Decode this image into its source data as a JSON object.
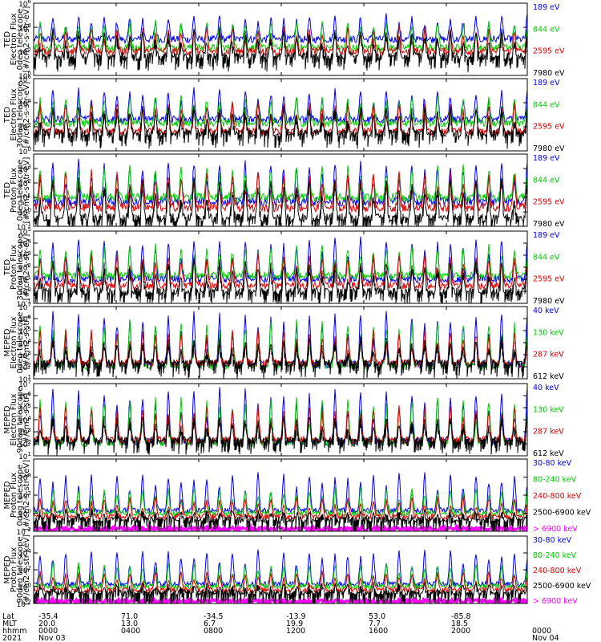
{
  "chart_data": [
    {
      "type": "line",
      "ylabel": [
        "TED",
        "Electron Flux",
        "0deg telescope",
        "[#/cm2-s-str-eV]"
      ],
      "yscale": "log",
      "ylim": [
        1,
        1000000
      ],
      "ytick_labels": [
        {
          "base": "10",
          "exp": "0"
        },
        {
          "base": "10",
          "exp": "2"
        },
        {
          "base": "10",
          "exp": "4"
        },
        {
          "base": "10",
          "exp": "6"
        }
      ],
      "series": [
        {
          "name": "7980 eV",
          "color": "#000000",
          "base": 40,
          "peak": 5000
        },
        {
          "name": "2595 eV",
          "color": "#dd0000",
          "base": 100,
          "peak": 8000
        },
        {
          "name": "844 eV",
          "color": "#00cc00",
          "base": 200,
          "peak": 30000
        },
        {
          "name": "189 eV",
          "color": "#0000ee",
          "base": 1000,
          "peak": 80000
        }
      ]
    },
    {
      "type": "line",
      "ylabel": [
        "TED",
        "Electron Flux",
        "30deg telescope",
        "[#/cm2-s-str-eV]"
      ],
      "yscale": "log",
      "ylim": [
        1,
        1000000
      ],
      "ytick_labels": [
        {
          "base": "10",
          "exp": "0"
        },
        {
          "base": "10",
          "exp": "2"
        },
        {
          "base": "10",
          "exp": "4"
        },
        {
          "base": "10",
          "exp": "6"
        }
      ],
      "series": [
        {
          "name": "7980 eV",
          "color": "#000000",
          "base": 30,
          "peak": 5000
        },
        {
          "name": "2595 eV",
          "color": "#dd0000",
          "base": 40,
          "peak": 8000
        },
        {
          "name": "844 eV",
          "color": "#00cc00",
          "base": 200,
          "peak": 30000
        },
        {
          "name": "189 eV",
          "color": "#0000ee",
          "base": 400,
          "peak": 100000
        }
      ]
    },
    {
      "type": "line",
      "ylabel": [
        "TED",
        "Proton Flux",
        "0deg telescope",
        "[#/cm2-s-str-eV]"
      ],
      "yscale": "log",
      "ylim": [
        0.1,
        10000
      ],
      "ytick_labels": [
        {
          "base": "10",
          "exp": "-1"
        },
        {
          "base": "10",
          "exp": "0"
        },
        {
          "base": "10",
          "exp": "1"
        },
        {
          "base": "10",
          "exp": "2"
        },
        {
          "base": "10",
          "exp": "3"
        }
      ],
      "series": [
        {
          "name": "7980 eV",
          "color": "#000000",
          "base": 0.4,
          "peak": 200
        },
        {
          "name": "2595 eV",
          "color": "#dd0000",
          "base": 2,
          "peak": 500
        },
        {
          "name": "844 eV",
          "color": "#00cc00",
          "base": 10,
          "peak": 1000
        },
        {
          "name": "189 eV",
          "color": "#0000ee",
          "base": 5,
          "peak": 3000
        }
      ]
    },
    {
      "type": "line",
      "ylabel": [
        "TED",
        "Proton Flux",
        "30deg telescope",
        "[#/cm2-s-str-eV]"
      ],
      "yscale": "log",
      "ylim": [
        0.1,
        100000
      ],
      "ytick_labels": [
        {
          "base": "10",
          "exp": "-1"
        },
        {
          "base": "10",
          "exp": "0"
        },
        {
          "base": "10",
          "exp": "1"
        },
        {
          "base": "10",
          "exp": "2"
        },
        {
          "base": "10",
          "exp": "3"
        },
        {
          "base": "10",
          "exp": "4"
        },
        {
          "base": "10",
          "exp": "5"
        }
      ],
      "series": [
        {
          "name": "7980 eV",
          "color": "#000000",
          "base": 1,
          "peak": 300
        },
        {
          "name": "2595 eV",
          "color": "#dd0000",
          "base": 3,
          "peak": 1000
        },
        {
          "name": "844 eV",
          "color": "#00cc00",
          "base": 20,
          "peak": 5000
        },
        {
          "name": "189 eV",
          "color": "#0000ee",
          "base": 10,
          "peak": 20000
        }
      ]
    },
    {
      "type": "line",
      "ylabel": [
        "MEPED",
        "Electron Flux",
        "0deg telescope",
        "[#/cm2-s-str]"
      ],
      "yscale": "log",
      "ylim": [
        10,
        10000000
      ],
      "ytick_labels": [
        {
          "base": "10",
          "exp": "1"
        },
        {
          "base": "10",
          "exp": "2"
        },
        {
          "base": "10",
          "exp": "3"
        },
        {
          "base": "10",
          "exp": "4"
        },
        {
          "base": "10",
          "exp": "5"
        },
        {
          "base": "10",
          "exp": "6"
        },
        {
          "base": "10",
          "exp": "7"
        }
      ],
      "series": [
        {
          "name": "612 keV",
          "color": "#000000",
          "base": 200,
          "peak": 20000
        },
        {
          "name": "287 keV",
          "color": "#dd0000",
          "base": 200,
          "peak": 100000
        },
        {
          "name": "130 keV",
          "color": "#00cc00",
          "base": 120,
          "peak": 500000
        },
        {
          "name": "40 keV",
          "color": "#0000ee",
          "base": 150,
          "peak": 3000000
        }
      ]
    },
    {
      "type": "line",
      "ylabel": [
        "MEPED",
        "Electron Flux",
        "90deg telescope",
        "[#/cm2-s-str]"
      ],
      "yscale": "log",
      "ylim": [
        10,
        10000000
      ],
      "ytick_labels": [
        {
          "base": "10",
          "exp": "1"
        },
        {
          "base": "10",
          "exp": "2"
        },
        {
          "base": "10",
          "exp": "3"
        },
        {
          "base": "10",
          "exp": "4"
        },
        {
          "base": "10",
          "exp": "5"
        },
        {
          "base": "10",
          "exp": "6"
        },
        {
          "base": "10",
          "exp": "7"
        }
      ],
      "series": [
        {
          "name": "612 keV",
          "color": "#000000",
          "base": 200,
          "peak": 20000
        },
        {
          "name": "287 keV",
          "color": "#dd0000",
          "base": 200,
          "peak": 100000
        },
        {
          "name": "130 keV",
          "color": "#00cc00",
          "base": 120,
          "peak": 500000
        },
        {
          "name": "40 keV",
          "color": "#0000ee",
          "base": 150,
          "peak": 3000000
        }
      ]
    },
    {
      "type": "line",
      "ylabel": [
        "MEPED",
        "Proton Flux",
        "0deg telescope",
        "[#/cm2-s-str-keV]"
      ],
      "yscale": "log",
      "ylim": [
        0.01,
        1000000
      ],
      "ytick_labels": [
        {
          "base": "10",
          "exp": "-2"
        },
        {
          "base": "10",
          "exp": "0"
        },
        {
          "base": "10",
          "exp": "2"
        },
        {
          "base": "10",
          "exp": "4"
        }
      ],
      "series": [
        {
          "name": "> 6900 keV",
          "color": "#ff00ff",
          "base": 0.012,
          "peak": 0.05
        },
        {
          "name": "2500-6900 keV",
          "color": "#000000",
          "base": 0.2,
          "peak": 2
        },
        {
          "name": "240-800 keV",
          "color": "#dd0000",
          "base": 0.4,
          "peak": 50
        },
        {
          "name": "80-240 keV",
          "color": "#00cc00",
          "base": 1,
          "peak": 500
        },
        {
          "name": "30-80 keV",
          "color": "#0000ee",
          "base": 2,
          "peak": 20000
        }
      ]
    },
    {
      "type": "line",
      "ylabel": [
        "MEPED",
        "Proton Flux",
        "90deg telescope",
        "[#/cm2-s-str-keV]"
      ],
      "yscale": "log",
      "ylim": [
        0.01,
        1000000
      ],
      "ytick_labels": [
        {
          "base": "10",
          "exp": "-2"
        },
        {
          "base": "10",
          "exp": "0"
        },
        {
          "base": "10",
          "exp": "2"
        },
        {
          "base": "10",
          "exp": "4"
        }
      ],
      "series": [
        {
          "name": "> 6900 keV",
          "color": "#ff00ff",
          "base": 0.012,
          "peak": 0.05
        },
        {
          "name": "2500-6900 keV",
          "color": "#000000",
          "base": 0.2,
          "peak": 2
        },
        {
          "name": "240-800 keV",
          "color": "#dd0000",
          "base": 0.4,
          "peak": 50
        },
        {
          "name": "80-240 keV",
          "color": "#00cc00",
          "base": 1,
          "peak": 500
        },
        {
          "name": "30-80 keV",
          "color": "#0000ee",
          "base": 2,
          "peak": 20000
        }
      ]
    }
  ],
  "x_axis": {
    "row_labels": [
      "Lat",
      "MLT",
      "hhmm",
      "2021"
    ],
    "ticks": [
      {
        "lat": "-35.4",
        "mlt": "20.0",
        "hhmm": "0000",
        "date": "Nov 03"
      },
      {
        "lat": "71.0",
        "mlt": "13.0",
        "hhmm": "0400",
        "date": ""
      },
      {
        "lat": "-34.5",
        "mlt": "6.7",
        "hhmm": "0800",
        "date": ""
      },
      {
        "lat": "-13.9",
        "mlt": "19.9",
        "hhmm": "1200",
        "date": ""
      },
      {
        "lat": "53.0",
        "mlt": "7.7",
        "hhmm": "1600",
        "date": ""
      },
      {
        "lat": "-85.8",
        "mlt": "18.5",
        "hhmm": "2000",
        "date": ""
      },
      {
        "lat": "",
        "mlt": "",
        "hhmm": "0000",
        "date": "Nov 04"
      }
    ]
  }
}
